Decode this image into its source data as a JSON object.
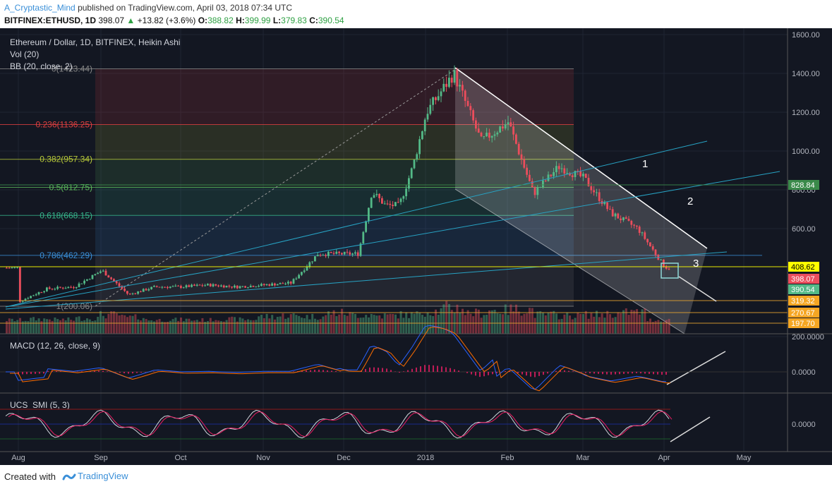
{
  "header": {
    "author": "A_Cryptastic_Mind",
    "published_text": "published on TradingView.com, April 03, 2018 07:34 UTC",
    "symbol": "BITFINEX:ETHUSD, 1D",
    "last": "398.07",
    "change_arrow": "▲",
    "change": "+13.82 (+3.6%)",
    "o_label": "O:",
    "o_value": "388.82",
    "h_label": "H:",
    "h_value": "399.99",
    "l_label": "L:",
    "l_value": "379.83",
    "c_label": "C:",
    "c_value": "390.54"
  },
  "legend": {
    "main": "Ethereum / Dollar, 1D, BITFINEX, Heikin Ashi",
    "vol": "Vol (20)",
    "bb": "BB (20, close, 2)"
  },
  "macd_label": "MACD (12, 26, close, 9)",
  "smi_label": "UCS_SMI (5, 3)",
  "footer": {
    "created_with": "Created with",
    "brand": "TradingView"
  },
  "colors": {
    "up": "#53b987",
    "down": "#eb4d5c",
    "fib_line": "#e0a030",
    "channel": "#ffffff",
    "trendline": "#27a2c3"
  },
  "chart_data": {
    "type": "candlestick",
    "price_axis_ticks": [
      "1600.00",
      "1400.00",
      "1200.00",
      "1000.00",
      "800.00",
      "600.00",
      "200.0000"
    ],
    "time_axis_ticks": [
      "Aug",
      "Sep",
      "Oct",
      "Nov",
      "Dec",
      "2018",
      "Feb",
      "Mar",
      "Apr",
      "May"
    ],
    "price_badges": [
      {
        "value": "828.84",
        "color": "#3a8a4a",
        "text_color": "#ffffff"
      },
      {
        "value": "408.62",
        "color": "#ffff00",
        "text_color": "#000000"
      },
      {
        "value": "398.07",
        "color": "#eb4d5c",
        "text_color": "#ffffff"
      },
      {
        "value": "390.54",
        "color": "#53b987",
        "text_color": "#ffffff"
      },
      {
        "value": "319.32",
        "color": "#f5a623",
        "text_color": "#ffffff"
      },
      {
        "value": "270.67",
        "color": "#f5a623",
        "text_color": "#ffffff"
      },
      {
        "value": "197.70",
        "color": "#f5a623",
        "text_color": "#ffffff"
      }
    ],
    "fib_levels": [
      {
        "label": "0(1423.44)",
        "value": 1423.44,
        "color": "#888888"
      },
      {
        "label": "0.236(1136.25)",
        "value": 1136.25,
        "color": "#e04040"
      },
      {
        "label": "0.382(957.34)",
        "value": 957.34,
        "color": "#b6c83a"
      },
      {
        "label": "0.5(812.75)",
        "value": 812.75,
        "color": "#5cb85c"
      },
      {
        "label": "0.618(668.15)",
        "value": 668.15,
        "color": "#36b58b"
      },
      {
        "label": "0.786(462.29)",
        "value": 462.29,
        "color": "#3a8fd8"
      },
      {
        "label": "1(200.06)",
        "value": 200.06,
        "color": "#888888"
      }
    ],
    "annotations": [
      "1",
      "2",
      "3"
    ],
    "macd_ticks": [
      "0.0000"
    ],
    "smi_ticks": [
      "0.0000"
    ],
    "price_path": [
      [
        "Aug",
        225
      ],
      [
        "Aug",
        290
      ],
      [
        "Aug",
        300
      ],
      [
        "Sep",
        385
      ],
      [
        "Sep",
        260
      ],
      [
        "Sep",
        300
      ],
      [
        "Oct",
        300
      ],
      [
        "Oct",
        310
      ],
      [
        "Oct",
        300
      ],
      [
        "Nov",
        310
      ],
      [
        "Nov",
        320
      ],
      [
        "Nov",
        470
      ],
      [
        "Dec",
        470
      ],
      [
        "Dec",
        470
      ],
      [
        "Dec",
        790
      ],
      [
        "Dec",
        720
      ],
      [
        "Dec",
        720
      ],
      [
        "Dec",
        920
      ],
      [
        "2018",
        1200
      ],
      [
        "2018",
        1400
      ],
      [
        "2018",
        1050
      ],
      [
        "Feb",
        1150
      ],
      [
        "Feb",
        780
      ],
      [
        "Feb",
        920
      ],
      [
        "Mar",
        860
      ],
      [
        "Mar",
        680
      ],
      [
        "Mar",
        600
      ],
      [
        "Apr",
        400
      ],
      [
        "Apr",
        398
      ]
    ],
    "volume_relative": [
      0.3,
      0.35,
      0.32,
      0.4,
      0.6,
      0.45,
      0.3,
      0.32,
      0.3,
      0.35,
      0.33,
      0.5,
      0.55,
      0.5,
      0.7,
      0.6,
      0.55,
      0.6,
      0.8,
      1.0,
      0.7,
      0.85,
      0.9,
      0.6,
      0.55,
      0.6,
      0.65,
      0.75,
      0.3
    ]
  }
}
